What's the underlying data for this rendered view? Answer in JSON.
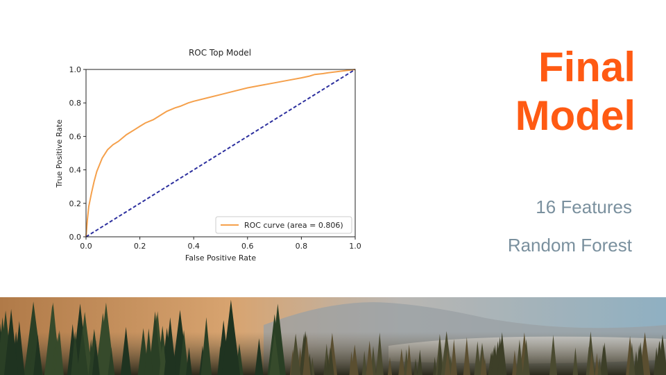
{
  "slide": {
    "title_line1": "Final",
    "title_line2": "Model",
    "subtitle1": "16 Features",
    "subtitle2": "Random Forest"
  },
  "colors": {
    "accent": "#ff5a13",
    "subtitle": "#7a909e",
    "roc_curve": "#f5a04b",
    "diagonal": "#2c2f9e"
  },
  "chart_data": {
    "type": "line",
    "title": "ROC Top Model",
    "xlabel": "False Positive Rate",
    "ylabel": "True Positive Rate",
    "xlim": [
      0,
      1
    ],
    "ylim": [
      0,
      1
    ],
    "xticks": [
      "0.0",
      "0.2",
      "0.4",
      "0.6",
      "0.8",
      "1.0"
    ],
    "yticks": [
      "0.0",
      "0.2",
      "0.4",
      "0.6",
      "0.8",
      "1.0"
    ],
    "grid": false,
    "legend_position": "lower right",
    "series": [
      {
        "name": "ROC curve (area = 0.806)",
        "style": "solid",
        "x": [
          0,
          0.005,
          0.01,
          0.02,
          0.03,
          0.04,
          0.05,
          0.06,
          0.08,
          0.1,
          0.12,
          0.15,
          0.18,
          0.2,
          0.22,
          0.25,
          0.28,
          0.3,
          0.33,
          0.35,
          0.38,
          0.4,
          0.45,
          0.5,
          0.55,
          0.6,
          0.65,
          0.7,
          0.75,
          0.8,
          0.83,
          0.85,
          0.88,
          0.9,
          0.95,
          1.0
        ],
        "y": [
          0,
          0.1,
          0.18,
          0.26,
          0.33,
          0.39,
          0.43,
          0.47,
          0.52,
          0.55,
          0.57,
          0.61,
          0.64,
          0.66,
          0.68,
          0.7,
          0.73,
          0.75,
          0.77,
          0.78,
          0.8,
          0.81,
          0.83,
          0.85,
          0.87,
          0.89,
          0.905,
          0.92,
          0.935,
          0.95,
          0.96,
          0.97,
          0.975,
          0.98,
          0.99,
          1.0
        ]
      },
      {
        "style": "dashed",
        "x": [
          0,
          1
        ],
        "y": [
          0,
          1
        ]
      }
    ]
  }
}
